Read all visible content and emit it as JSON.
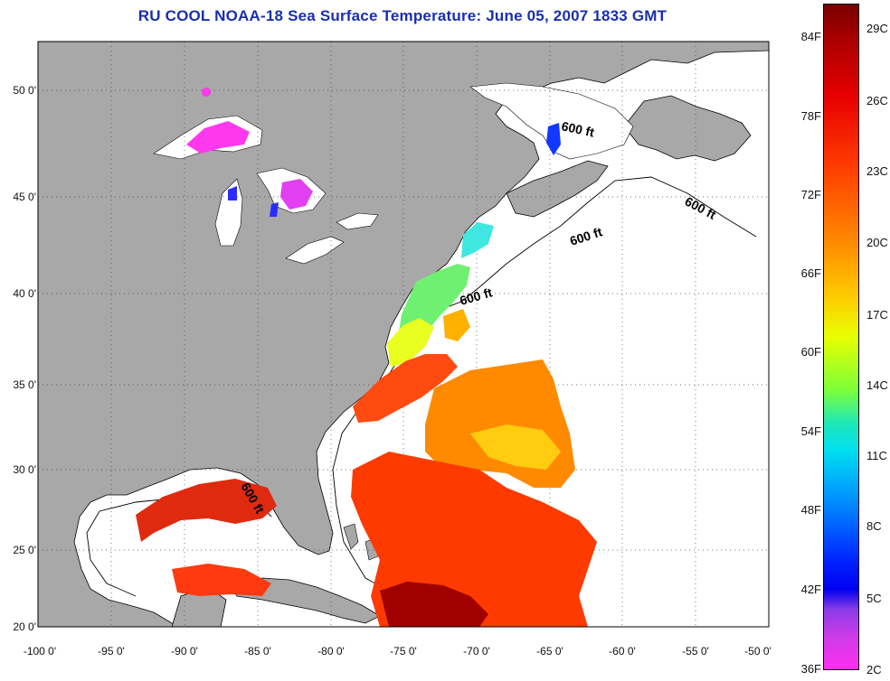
{
  "title": "RU COOL  NOAA-18  Sea Surface Temperature:  June 05, 2007 1833 GMT",
  "map": {
    "lon_range": [
      -100,
      -50
    ],
    "lat_range": [
      20,
      52.5
    ],
    "grid": true,
    "x_ticks": [
      "-100 0'",
      "-95 0'",
      "-90 0'",
      "-85 0'",
      "-80 0'",
      "-75 0'",
      "-70 0'",
      "-65 0'",
      "-60 0'",
      "-55 0'",
      "-50 0'"
    ],
    "y_ticks": [
      "50 0'",
      "45 0'",
      "40 0'",
      "35 0'",
      "30 0'",
      "25 0'",
      "20 0'"
    ],
    "isobath_labels": [
      "600 ft",
      "600 ft",
      "600 ft",
      "600 ft",
      "600 ft"
    ],
    "land_color": "#a8a8a8",
    "ocean_color": "#ffffff"
  },
  "colorbar": {
    "fahrenheit": [
      "84F",
      "78F",
      "72F",
      "66F",
      "60F",
      "54F",
      "48F",
      "42F",
      "36F"
    ],
    "celsius": [
      "29C",
      "26C",
      "23C",
      "20C",
      "17C",
      "14C",
      "11C",
      "8C",
      "5C",
      "2C"
    ]
  }
}
